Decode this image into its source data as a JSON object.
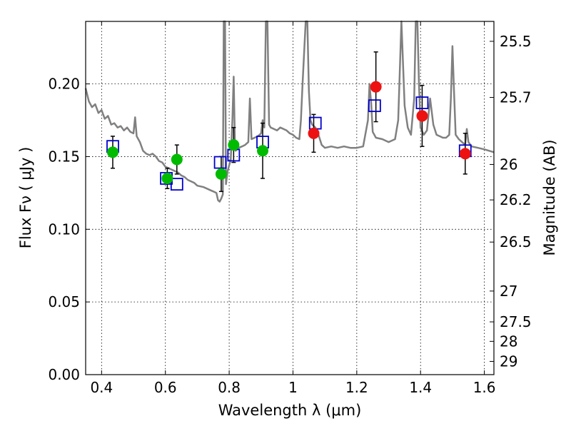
{
  "chart_data": {
    "type": "scatter",
    "title": "",
    "xlabel": "Wavelength  λ (μm)",
    "ylabel": "Flux  Fν  ( μJy )",
    "ylabel_right": "Magnitude (AB)",
    "xlim": [
      0.35,
      1.63
    ],
    "ylim": [
      0.0,
      0.243
    ],
    "grid": true,
    "x_ticks": [
      0.4,
      0.6,
      0.8,
      1.0,
      1.2,
      1.4,
      1.6
    ],
    "x_tick_labels": [
      "0.4",
      "0.6",
      "0.8",
      "1",
      "1.2",
      "1.4",
      "1.6"
    ],
    "y_ticks": [
      0.0,
      0.05,
      0.1,
      0.15,
      0.2
    ],
    "y_tick_labels": [
      "0.00",
      "0.05",
      "0.10",
      "0.15",
      "0.20"
    ],
    "right_ticks": [
      {
        "label": "25.5",
        "flux": 0.2293
      },
      {
        "label": "25.7",
        "flux": 0.1907
      },
      {
        "label": "26",
        "flux": 0.1446
      },
      {
        "label": "26.2",
        "flux": 0.1202
      },
      {
        "label": "26.5",
        "flux": 0.0912
      },
      {
        "label": "27",
        "flux": 0.0575
      },
      {
        "label": "27.5",
        "flux": 0.0363
      },
      {
        "label": "28",
        "flux": 0.0229
      },
      {
        "label": "29",
        "flux": 0.0091
      }
    ],
    "series": [
      {
        "marker": "circle",
        "color": "#00bb00",
        "points": [
          {
            "x": 0.435,
            "y": 0.153,
            "err": 0.011
          },
          {
            "x": 0.606,
            "y": 0.135,
            "err": 0.007
          },
          {
            "x": 0.636,
            "y": 0.148,
            "err": 0.01
          },
          {
            "x": 0.775,
            "y": 0.138,
            "err": 0.012
          },
          {
            "x": 0.814,
            "y": 0.158,
            "err": 0.012
          },
          {
            "x": 0.905,
            "y": 0.154,
            "err": 0.019
          }
        ]
      },
      {
        "marker": "circle",
        "color": "#ee1111",
        "points": [
          {
            "x": 1.065,
            "y": 0.166,
            "err": 0.013
          },
          {
            "x": 1.26,
            "y": 0.198,
            "err": 0.024
          },
          {
            "x": 1.405,
            "y": 0.178,
            "err": 0.021
          },
          {
            "x": 1.54,
            "y": 0.152,
            "err": 0.014
          }
        ]
      },
      {
        "marker": "open-square",
        "color": "#0000cc",
        "points": [
          {
            "x": 0.435,
            "y": 0.157
          },
          {
            "x": 0.603,
            "y": 0.135
          },
          {
            "x": 0.636,
            "y": 0.131
          },
          {
            "x": 0.772,
            "y": 0.146
          },
          {
            "x": 0.814,
            "y": 0.151
          },
          {
            "x": 0.905,
            "y": 0.16
          },
          {
            "x": 1.07,
            "y": 0.173
          },
          {
            "x": 1.256,
            "y": 0.185
          },
          {
            "x": 1.405,
            "y": 0.187
          },
          {
            "x": 1.54,
            "y": 0.154
          }
        ]
      },
      {
        "marker": "line",
        "color": "#808080",
        "points": [
          [
            0.35,
            0.197
          ],
          [
            0.36,
            0.188
          ],
          [
            0.37,
            0.184
          ],
          [
            0.38,
            0.186
          ],
          [
            0.39,
            0.18
          ],
          [
            0.4,
            0.182
          ],
          [
            0.41,
            0.176
          ],
          [
            0.42,
            0.178
          ],
          [
            0.43,
            0.172
          ],
          [
            0.44,
            0.173
          ],
          [
            0.45,
            0.17
          ],
          [
            0.46,
            0.171
          ],
          [
            0.47,
            0.168
          ],
          [
            0.48,
            0.17
          ],
          [
            0.49,
            0.167
          ],
          [
            0.5,
            0.166
          ],
          [
            0.505,
            0.177
          ],
          [
            0.51,
            0.164
          ],
          [
            0.52,
            0.16
          ],
          [
            0.53,
            0.154
          ],
          [
            0.54,
            0.152
          ],
          [
            0.55,
            0.151
          ],
          [
            0.56,
            0.152
          ],
          [
            0.57,
            0.15
          ],
          [
            0.58,
            0.147
          ],
          [
            0.59,
            0.146
          ],
          [
            0.6,
            0.143
          ],
          [
            0.61,
            0.142
          ],
          [
            0.62,
            0.141
          ],
          [
            0.63,
            0.14
          ],
          [
            0.64,
            0.139
          ],
          [
            0.65,
            0.137
          ],
          [
            0.66,
            0.136
          ],
          [
            0.67,
            0.134
          ],
          [
            0.68,
            0.133
          ],
          [
            0.69,
            0.132
          ],
          [
            0.7,
            0.13
          ],
          [
            0.72,
            0.129
          ],
          [
            0.74,
            0.127
          ],
          [
            0.75,
            0.126
          ],
          [
            0.76,
            0.125
          ],
          [
            0.765,
            0.12
          ],
          [
            0.77,
            0.119
          ],
          [
            0.775,
            0.121
          ],
          [
            0.78,
            0.124
          ],
          [
            0.783,
            0.243
          ],
          [
            0.787,
            0.243
          ],
          [
            0.79,
            0.131
          ],
          [
            0.795,
            0.14
          ],
          [
            0.8,
            0.144
          ],
          [
            0.805,
            0.148
          ],
          [
            0.81,
            0.175
          ],
          [
            0.814,
            0.205
          ],
          [
            0.818,
            0.16
          ],
          [
            0.82,
            0.154
          ],
          [
            0.83,
            0.156
          ],
          [
            0.84,
            0.157
          ],
          [
            0.85,
            0.158
          ],
          [
            0.86,
            0.16
          ],
          [
            0.865,
            0.19
          ],
          [
            0.87,
            0.162
          ],
          [
            0.88,
            0.163
          ],
          [
            0.89,
            0.164
          ],
          [
            0.9,
            0.166
          ],
          [
            0.905,
            0.175
          ],
          [
            0.91,
            0.17
          ],
          [
            0.915,
            0.243
          ],
          [
            0.92,
            0.243
          ],
          [
            0.925,
            0.172
          ],
          [
            0.93,
            0.17
          ],
          [
            0.94,
            0.169
          ],
          [
            0.95,
            0.168
          ],
          [
            0.96,
            0.17
          ],
          [
            0.97,
            0.169
          ],
          [
            0.98,
            0.168
          ],
          [
            0.99,
            0.166
          ],
          [
            1.0,
            0.165
          ],
          [
            1.01,
            0.163
          ],
          [
            1.02,
            0.162
          ],
          [
            1.025,
            0.175
          ],
          [
            1.03,
            0.2
          ],
          [
            1.04,
            0.243
          ],
          [
            1.045,
            0.243
          ],
          [
            1.05,
            0.195
          ],
          [
            1.055,
            0.175
          ],
          [
            1.06,
            0.172
          ],
          [
            1.07,
            0.17
          ],
          [
            1.08,
            0.165
          ],
          [
            1.09,
            0.158
          ],
          [
            1.1,
            0.156
          ],
          [
            1.12,
            0.157
          ],
          [
            1.14,
            0.156
          ],
          [
            1.16,
            0.157
          ],
          [
            1.18,
            0.156
          ],
          [
            1.2,
            0.156
          ],
          [
            1.22,
            0.157
          ],
          [
            1.235,
            0.175
          ],
          [
            1.24,
            0.2
          ],
          [
            1.245,
            0.187
          ],
          [
            1.25,
            0.167
          ],
          [
            1.26,
            0.163
          ],
          [
            1.28,
            0.162
          ],
          [
            1.3,
            0.16
          ],
          [
            1.32,
            0.162
          ],
          [
            1.33,
            0.175
          ],
          [
            1.34,
            0.243
          ],
          [
            1.35,
            0.185
          ],
          [
            1.36,
            0.17
          ],
          [
            1.37,
            0.165
          ],
          [
            1.38,
            0.19
          ],
          [
            1.385,
            0.243
          ],
          [
            1.39,
            0.243
          ],
          [
            1.395,
            0.2
          ],
          [
            1.4,
            0.17
          ],
          [
            1.41,
            0.165
          ],
          [
            1.42,
            0.168
          ],
          [
            1.43,
            0.19
          ],
          [
            1.44,
            0.172
          ],
          [
            1.45,
            0.165
          ],
          [
            1.46,
            0.164
          ],
          [
            1.47,
            0.163
          ],
          [
            1.48,
            0.163
          ],
          [
            1.49,
            0.165
          ],
          [
            1.495,
            0.19
          ],
          [
            1.5,
            0.226
          ],
          [
            1.505,
            0.195
          ],
          [
            1.51,
            0.165
          ],
          [
            1.52,
            0.162
          ],
          [
            1.53,
            0.16
          ],
          [
            1.54,
            0.158
          ],
          [
            1.545,
            0.169
          ],
          [
            1.55,
            0.16
          ],
          [
            1.56,
            0.157
          ],
          [
            1.58,
            0.156
          ],
          [
            1.6,
            0.155
          ],
          [
            1.63,
            0.153
          ]
        ]
      }
    ]
  }
}
